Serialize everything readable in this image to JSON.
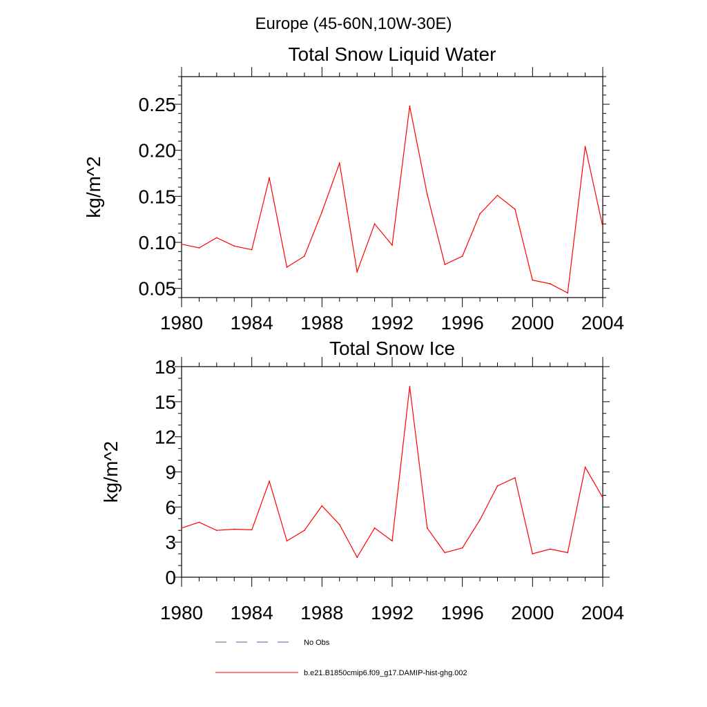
{
  "figure_title": "Europe (45-60N,10W-30E)",
  "legend": [
    {
      "label": "No Obs",
      "style": "dashed",
      "color": "#5a5a9a"
    },
    {
      "label": "b.e21.B1850cmip6.f09_g17.DAMIP-hist-ghg.002",
      "style": "solid",
      "color": "#ff0000"
    }
  ],
  "chart_data": [
    {
      "type": "line",
      "title": "Total Snow Liquid Water",
      "xlabel": "",
      "ylabel": "kg/m^2",
      "xlim": [
        1980,
        2004
      ],
      "ylim": [
        0.04,
        0.28
      ],
      "x_ticks": [
        1980,
        1984,
        1988,
        1992,
        1996,
        2000,
        2004
      ],
      "y_ticks": [
        0.05,
        0.1,
        0.15,
        0.2,
        0.25
      ],
      "y_tick_labels": [
        "0.05",
        "0.10",
        "0.15",
        "0.20",
        "0.25"
      ],
      "y_minor_step": 0.01,
      "x_minor_step": 1,
      "grid": false,
      "x": [
        1980,
        1981,
        1982,
        1983,
        1984,
        1985,
        1986,
        1987,
        1988,
        1989,
        1990,
        1991,
        1992,
        1993,
        1994,
        1995,
        1996,
        1997,
        1998,
        1999,
        2000,
        2001,
        2002,
        2003,
        2004
      ],
      "series": [
        {
          "name": "b.e21.B1850cmip6.f09_g17.DAMIP-hist-ghg.002",
          "color": "#ff0000",
          "values": [
            0.098,
            0.094,
            0.105,
            0.096,
            0.092,
            0.17,
            0.073,
            0.085,
            0.133,
            0.186,
            0.068,
            0.12,
            0.097,
            0.248,
            0.152,
            0.076,
            0.085,
            0.131,
            0.151,
            0.136,
            0.059,
            0.055,
            0.045,
            0.204,
            0.117
          ]
        }
      ]
    },
    {
      "type": "line",
      "title": "Total Snow Ice",
      "xlabel": "",
      "ylabel": "kg/m^2",
      "xlim": [
        1980,
        2004
      ],
      "ylim": [
        0,
        18
      ],
      "x_ticks": [
        1980,
        1984,
        1988,
        1992,
        1996,
        2000,
        2004
      ],
      "y_ticks": [
        0,
        3,
        6,
        9,
        12,
        15,
        18
      ],
      "y_tick_labels": [
        "0",
        "3",
        "6",
        "9",
        "12",
        "15",
        "18"
      ],
      "y_minor_step": 1,
      "x_minor_step": 1,
      "grid": false,
      "x": [
        1980,
        1981,
        1982,
        1983,
        1984,
        1985,
        1986,
        1987,
        1988,
        1989,
        1990,
        1991,
        1992,
        1993,
        1994,
        1995,
        1996,
        1997,
        1998,
        1999,
        2000,
        2001,
        2002,
        2003,
        2004
      ],
      "series": [
        {
          "name": "b.e21.B1850cmip6.f09_g17.DAMIP-hist-ghg.002",
          "color": "#ff0000",
          "values": [
            4.2,
            4.7,
            4.0,
            4.1,
            4.05,
            8.2,
            3.1,
            4.0,
            6.1,
            4.5,
            1.7,
            4.2,
            3.1,
            16.3,
            4.2,
            2.1,
            2.5,
            4.9,
            7.8,
            8.5,
            2.0,
            2.4,
            2.1,
            9.4,
            6.8
          ]
        }
      ]
    }
  ]
}
